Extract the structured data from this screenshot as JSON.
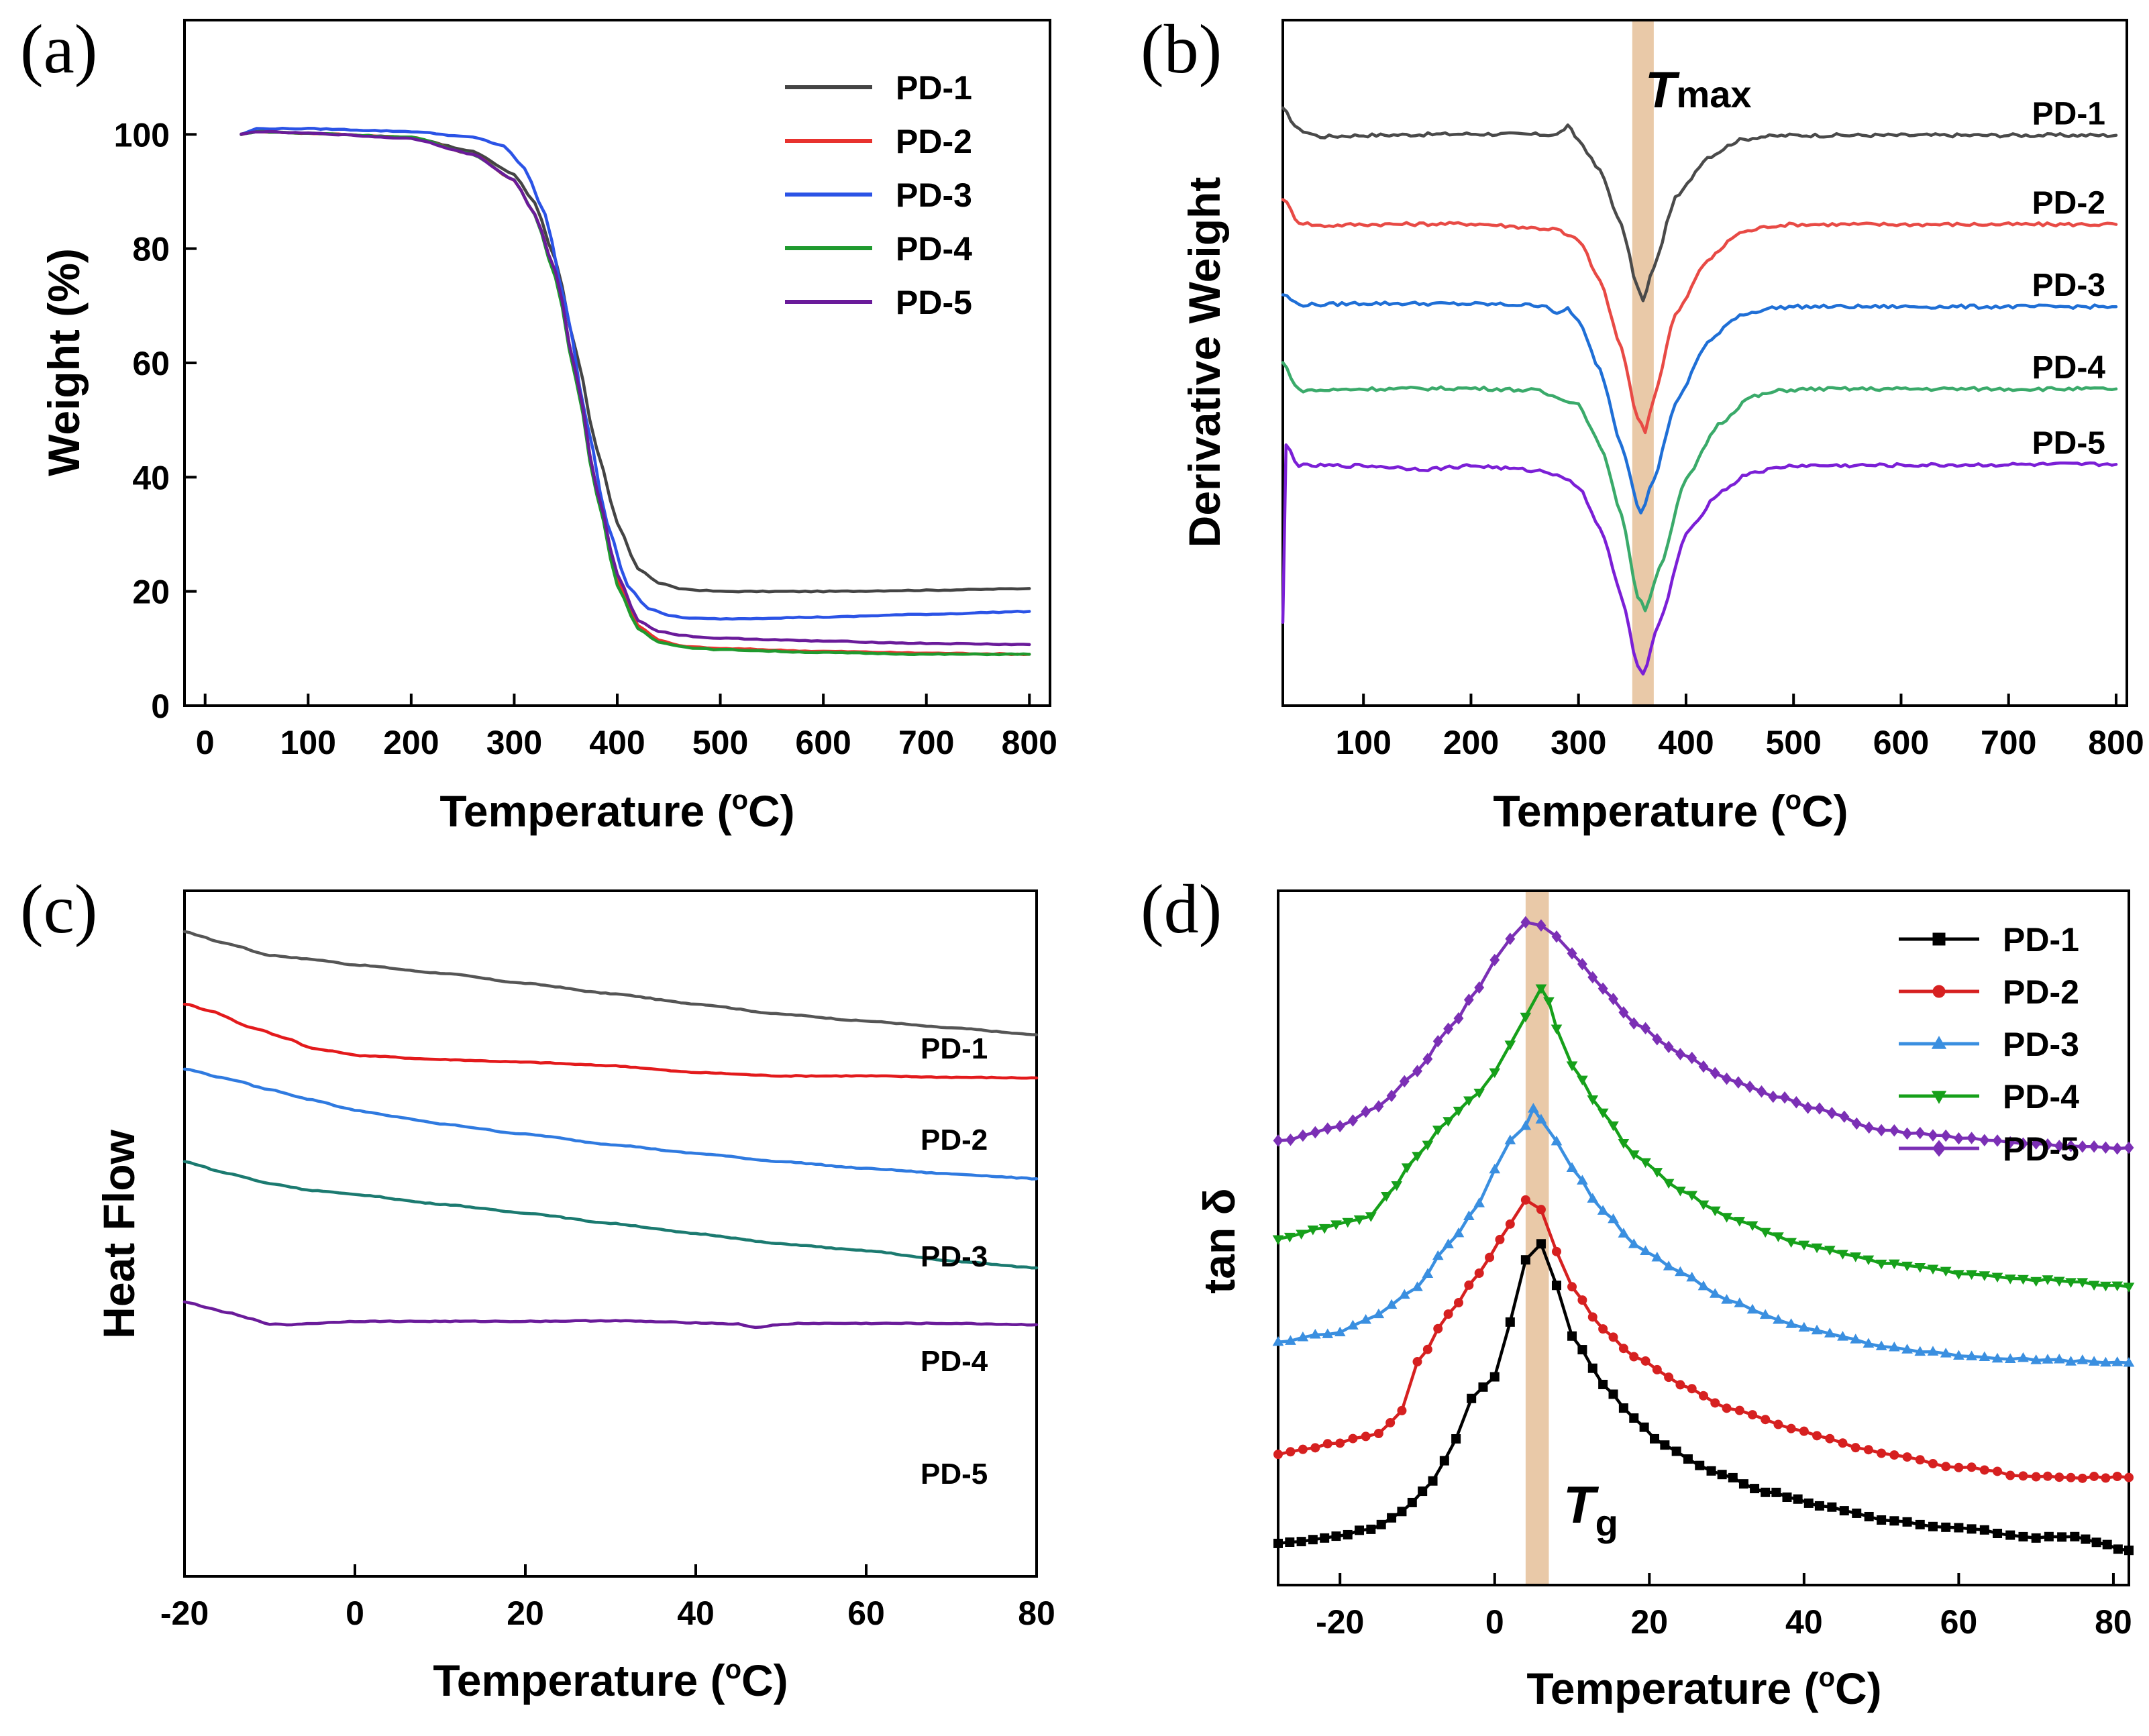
{
  "colors": {
    "PD-1": "#444444",
    "PD-2": "#e8322e",
    "PD-3": "#2b53e6",
    "PD-4": "#1f9a2e",
    "PD-5": "#6a1b9a",
    "b_PD-1": "#4a4a4a",
    "b_PD-2": "#e84a45",
    "b_PD-3": "#1f6fd6",
    "b_PD-4": "#3aaa6a",
    "b_PD-5": "#7b1fd6",
    "c_PD-1": "#555555",
    "c_PD-2": "#e31a1c",
    "c_PD-3": "#2f7ae0",
    "c_PD-4": "#1b7a70",
    "c_PD-5": "#6a1b9a",
    "d_PD-1": "#000000",
    "d_PD-2": "#d62020",
    "d_PD-3": "#3a8fe0",
    "d_PD-4": "#16a01a",
    "d_PD-5": "#7b2fb5",
    "highlight": "#e9c9a8"
  },
  "chart_data": [
    {
      "panel": "(a)",
      "type": "line",
      "xlabel": "Temperature (",
      "xlabel_sup": "o",
      "xlabel_tail": "C)",
      "ylabel": "Weight (%)",
      "xlim": [
        -20,
        820
      ],
      "ylim": [
        0,
        120
      ],
      "xticks": [
        0,
        100,
        200,
        300,
        400,
        500,
        600,
        700,
        800
      ],
      "yticks": [
        0,
        20,
        40,
        60,
        80,
        100
      ],
      "xtick_labels": [
        "0",
        "100",
        "200",
        "300",
        "400",
        "500",
        "600",
        "700",
        "800"
      ],
      "ytick_labels": [
        "0",
        "20",
        "40",
        "60",
        "80",
        "100"
      ],
      "legend": [
        "PD-1",
        "PD-2",
        "PD-3",
        "PD-4",
        "PD-5"
      ],
      "legend_position": "top-right",
      "series": [
        {
          "name": "PD-1",
          "x": [
            35,
            50,
            100,
            200,
            260,
            300,
            320,
            340,
            360,
            380,
            400,
            420,
            440,
            460,
            480,
            500,
            600,
            700,
            800
          ],
          "y": [
            100,
            100.5,
            100.2,
            99.5,
            97,
            93,
            88,
            78,
            62,
            45,
            32,
            24,
            21.5,
            20.5,
            20.2,
            20,
            20,
            20.2,
            20.5
          ]
        },
        {
          "name": "PD-2",
          "x": [
            35,
            50,
            100,
            200,
            260,
            300,
            320,
            340,
            360,
            380,
            400,
            420,
            440,
            460,
            480,
            500,
            600,
            700,
            800
          ],
          "y": [
            100,
            100.5,
            100.2,
            99.5,
            96.5,
            92,
            86,
            76,
            58,
            38,
            22,
            14,
            11.5,
            10.5,
            10.2,
            10,
            9.5,
            9.2,
            9
          ]
        },
        {
          "name": "PD-3",
          "x": [
            35,
            50,
            100,
            200,
            260,
            290,
            310,
            330,
            350,
            370,
            390,
            410,
            430,
            450,
            470,
            500,
            600,
            700,
            800
          ],
          "y": [
            100,
            101,
            101,
            100.5,
            99.5,
            98,
            94,
            86,
            70,
            50,
            32,
            21,
            17,
            15.8,
            15.3,
            15.2,
            15.5,
            16,
            16.5
          ]
        },
        {
          "name": "PD-4",
          "x": [
            35,
            50,
            100,
            200,
            260,
            300,
            320,
            340,
            360,
            380,
            400,
            420,
            440,
            460,
            480,
            500,
            600,
            700,
            800
          ],
          "y": [
            100,
            100.5,
            100.2,
            99.5,
            96.5,
            92,
            86,
            75,
            57,
            37,
            21,
            13.5,
            11.2,
            10.4,
            10,
            9.8,
            9.3,
            9,
            9
          ]
        },
        {
          "name": "PD-5",
          "x": [
            35,
            50,
            100,
            200,
            260,
            300,
            320,
            340,
            360,
            380,
            400,
            420,
            440,
            460,
            480,
            500,
            600,
            700,
            800
          ],
          "y": [
            100,
            100.5,
            100.2,
            99.3,
            96.5,
            92,
            86,
            76,
            58,
            38,
            23,
            15,
            13,
            12.4,
            12,
            11.8,
            11.3,
            10.9,
            10.7
          ]
        }
      ]
    },
    {
      "panel": "(b)",
      "type": "line",
      "xlabel": "Temperature (",
      "xlabel_sup": "o",
      "xlabel_tail": "C)",
      "ylabel": "Derivative Weight",
      "xlim": [
        25,
        810
      ],
      "ylim": [
        0,
        100
      ],
      "xticks": [
        100,
        200,
        300,
        400,
        500,
        600,
        700,
        800
      ],
      "xtick_labels": [
        "100",
        "200",
        "300",
        "400",
        "500",
        "600",
        "700",
        "800"
      ],
      "annotation": {
        "text": "T",
        "sub": "max",
        "x": 360
      },
      "highlight_band": [
        350,
        370
      ],
      "series_labels": [
        "PD-1",
        "PD-2",
        "PD-3",
        "PD-4",
        "PD-5"
      ],
      "series": [
        {
          "name": "PD-1",
          "x": [
            25,
            40,
            60,
            100,
            200,
            280,
            290,
            300,
            320,
            340,
            355,
            360,
            370,
            390,
            420,
            450,
            470,
            500,
            800
          ],
          "y": [
            87,
            84,
            83,
            83.2,
            83.4,
            83.3,
            84.5,
            82.5,
            78,
            70,
            61,
            59,
            64,
            74,
            80,
            82.5,
            83,
            83.2,
            83.2
          ]
        },
        {
          "name": "PD-2",
          "x": [
            25,
            40,
            60,
            100,
            200,
            280,
            290,
            300,
            320,
            340,
            355,
            362,
            370,
            390,
            420,
            450,
            480,
            500,
            800
          ],
          "y": [
            74,
            70.5,
            70,
            70.2,
            70.3,
            69.5,
            68.5,
            68,
            62,
            52,
            42,
            40,
            45,
            57,
            65,
            69,
            70,
            70.2,
            70.2
          ]
        },
        {
          "name": "PD-3",
          "x": [
            25,
            40,
            60,
            100,
            200,
            270,
            280,
            290,
            300,
            320,
            340,
            358,
            370,
            390,
            420,
            450,
            480,
            500,
            800
          ],
          "y": [
            60,
            58.5,
            58.5,
            58.7,
            58.6,
            58.4,
            57,
            58,
            56,
            49,
            38,
            28,
            33,
            44,
            53,
            57,
            58,
            58.2,
            58.2
          ]
        },
        {
          "name": "PD-4",
          "x": [
            25,
            40,
            60,
            100,
            200,
            260,
            280,
            300,
            320,
            340,
            355,
            362,
            375,
            400,
            430,
            460,
            490,
            520,
            800
          ],
          "y": [
            50,
            46,
            46,
            46.2,
            46.3,
            46,
            45,
            44,
            38,
            28,
            16,
            14,
            20,
            33,
            41,
            45,
            46,
            46.2,
            46.2
          ]
        },
        {
          "name": "PD-5",
          "x": [
            25,
            28,
            40,
            100,
            160,
            200,
            260,
            280,
            300,
            320,
            340,
            355,
            360,
            375,
            400,
            430,
            460,
            500,
            800
          ],
          "y": [
            12,
            38,
            35,
            35,
            34.5,
            35,
            34.3,
            33.8,
            32,
            26,
            16,
            6,
            4.5,
            12,
            25,
            31,
            34,
            35,
            35.2
          ]
        }
      ]
    },
    {
      "panel": "(c)",
      "type": "line",
      "xlabel": "Temperature (",
      "xlabel_sup": "o",
      "xlabel_tail": "C)",
      "ylabel": "Heat Flow",
      "xlim": [
        -20,
        80
      ],
      "ylim": [
        0,
        100
      ],
      "xticks": [
        -20,
        0,
        20,
        40,
        60,
        80
      ],
      "xtick_labels": [
        "-20",
        "0",
        "20",
        "40",
        "60",
        "80"
      ],
      "series_labels": [
        "PD-1",
        "PD-2",
        "PD-3",
        "PD-4",
        "PD-5"
      ],
      "series": [
        {
          "name": "PD-1",
          "x": [
            -20,
            -15,
            -10,
            -5,
            0,
            10,
            20,
            30,
            40,
            50,
            60,
            70,
            80
          ],
          "y": [
            94,
            92.3,
            90.6,
            90,
            89.2,
            88,
            86.5,
            85,
            83.5,
            82,
            81,
            80,
            79
          ]
        },
        {
          "name": "PD-2",
          "x": [
            -20,
            -17,
            -12,
            -8,
            -5,
            -2,
            0,
            10,
            20,
            30,
            40,
            50,
            60,
            70,
            80
          ],
          "y": [
            83.5,
            82.5,
            80,
            78.5,
            77,
            76.5,
            76,
            75.4,
            75,
            74.5,
            73.5,
            73,
            73,
            72.8,
            72.7
          ]
        },
        {
          "name": "PD-3",
          "x": [
            -20,
            -15,
            -10,
            -5,
            0,
            5,
            10,
            20,
            30,
            40,
            50,
            60,
            70,
            80
          ],
          "y": [
            74,
            72.6,
            71,
            69.5,
            68,
            67,
            66,
            64.5,
            63,
            61.7,
            60.5,
            59.5,
            58.7,
            58
          ]
        },
        {
          "name": "PD-4",
          "x": [
            -20,
            -15,
            -10,
            -5,
            0,
            10,
            20,
            30,
            40,
            50,
            60,
            70,
            80
          ],
          "y": [
            60.5,
            58.8,
            57.3,
            56.3,
            55.7,
            54.3,
            53,
            51.5,
            50,
            48.5,
            47.5,
            46,
            45
          ]
        },
        {
          "name": "PD-5",
          "x": [
            -20,
            -15,
            -12,
            -10,
            -8,
            -5,
            0,
            10,
            20,
            30,
            40,
            45,
            47,
            49,
            52,
            60,
            70,
            80
          ],
          "y": [
            40,
            38.5,
            37.5,
            36.8,
            36.7,
            36.9,
            37.2,
            37.2,
            37.2,
            37.3,
            37,
            36.8,
            36.3,
            36.6,
            36.9,
            36.9,
            36.9,
            36.7
          ]
        }
      ]
    },
    {
      "panel": "(d)",
      "type": "line",
      "xlabel": "Temperature (",
      "xlabel_sup": "o",
      "xlabel_tail": "C)",
      "ylabel": "tan δ",
      "xlim": [
        -28,
        82
      ],
      "ylim": [
        0,
        100
      ],
      "xticks": [
        -20,
        0,
        20,
        40,
        60,
        80
      ],
      "xtick_labels": [
        "-20",
        "0",
        "20",
        "40",
        "60",
        "80"
      ],
      "annotation": {
        "text": "T",
        "sub": "g",
        "x": 5
      },
      "highlight_band": [
        4,
        7
      ],
      "legend": [
        "PD-1",
        "PD-2",
        "PD-3",
        "PD-4",
        "PD-5"
      ],
      "legend_position": "top-right",
      "series": [
        {
          "name": "PD-1",
          "marker": "square",
          "x": [
            -28,
            -22,
            -16,
            -12,
            -8,
            -5,
            -3,
            0,
            2,
            4,
            6,
            8,
            10,
            14,
            18,
            22,
            28,
            35,
            42,
            50,
            60,
            70,
            75,
            82
          ],
          "y": [
            6,
            6.8,
            8,
            10.5,
            15,
            21,
            27,
            30,
            38,
            47,
            49,
            43,
            36,
            29,
            24,
            20,
            16.5,
            13.5,
            11.5,
            9.5,
            8.2,
            6.8,
            7,
            5
          ]
        },
        {
          "name": "PD-2",
          "marker": "circle",
          "x": [
            -28,
            -20,
            -15,
            -12,
            -10,
            -6,
            -2,
            2,
            4,
            6,
            8,
            10,
            14,
            18,
            24,
            30,
            40,
            50,
            60,
            70,
            82
          ],
          "y": [
            19,
            20.5,
            22,
            25,
            32,
            39,
            45,
            52,
            55.5,
            54,
            48,
            43,
            37,
            33,
            29,
            25.5,
            22,
            19,
            17,
            15.5,
            15.5
          ]
        },
        {
          "name": "PD-3",
          "marker": "triangle-up",
          "x": [
            -28,
            -20,
            -15,
            -10,
            -6,
            -2,
            0,
            2,
            4,
            5,
            6,
            8,
            10,
            14,
            18,
            24,
            30,
            40,
            50,
            60,
            70,
            82
          ],
          "y": [
            35,
            36.5,
            39,
            43,
            49,
            55,
            60,
            64,
            66,
            68.5,
            67,
            64,
            60,
            54,
            49,
            45,
            41,
            37,
            34.5,
            33,
            32.5,
            32
          ]
        },
        {
          "name": "PD-4",
          "marker": "triangle-down",
          "x": [
            -28,
            -22,
            -16,
            -14,
            -10,
            -6,
            -2,
            0,
            2,
            4,
            6,
            7,
            8,
            10,
            14,
            18,
            24,
            30,
            40,
            50,
            60,
            70,
            82
          ],
          "y": [
            50,
            51.5,
            53,
            56,
            62,
            67,
            71,
            74,
            78,
            82,
            86,
            84,
            80,
            75,
            68,
            62,
            57,
            53,
            49,
            46.5,
            45,
            44,
            43
          ]
        },
        {
          "name": "PD-5",
          "marker": "diamond",
          "x": [
            -28,
            -20,
            -15,
            -10,
            -6,
            -2,
            0,
            2,
            4,
            6,
            8,
            10,
            14,
            18,
            24,
            30,
            36,
            42,
            50,
            60,
            70,
            82
          ],
          "y": [
            64,
            66,
            69,
            74,
            80,
            86,
            90,
            93,
            95.5,
            95,
            93.5,
            91,
            86,
            81,
            76.5,
            73,
            70.5,
            68.5,
            65.5,
            64.5,
            63.5,
            63
          ]
        }
      ]
    }
  ]
}
